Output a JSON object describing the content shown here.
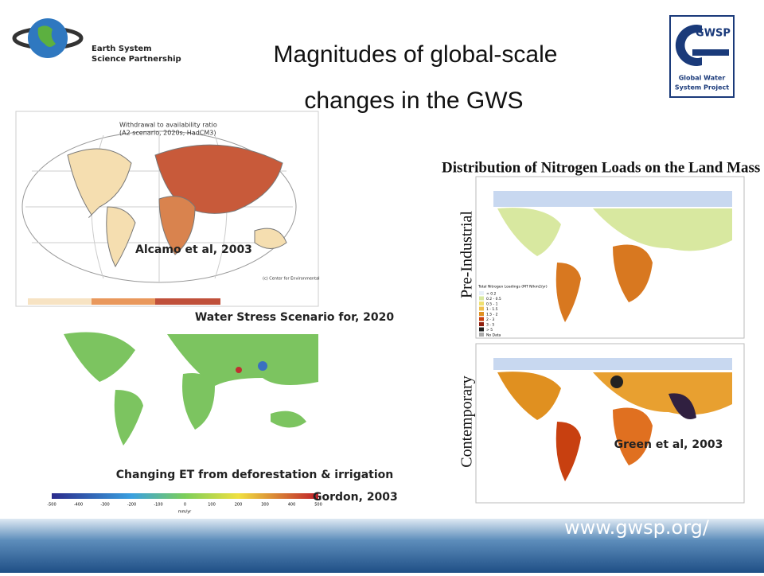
{
  "header": {
    "partner_logo": [
      "Earth System",
      "Science Partnership"
    ],
    "title": [
      "Magnitudes of global-scale",
      "changes in the GWS"
    ],
    "project_logo": {
      "acronym": "GWSP",
      "name": [
        "Global Water",
        "System Project"
      ]
    }
  },
  "water_stress": {
    "map_title": [
      "Withdrawal to availability ratio",
      "(A2 scenario, 2020s, HadCM3)"
    ],
    "source": "Alcamo et al, 2003",
    "copyright": "(c) Center for Environmental",
    "caption": "Water Stress Scenario for, 2020"
  },
  "evapotranspiration": {
    "caption": "Changing ET from deforestation & irrigation",
    "source": "Gordon, 2003",
    "colorbar_ticks": [
      "-500",
      "-400",
      "-300",
      "-200",
      "-100",
      "0",
      "100",
      "200",
      "300",
      "400",
      "500"
    ],
    "colorbar_unit": "mm/yr"
  },
  "nitrogen": {
    "title": "Distribution of Nitrogen Loads on the Land Mass",
    "panels": [
      "Pre-Industrial",
      "Contemporary"
    ],
    "legend_title": "Total Nitrogen Loadings (MT N/km2/yr)",
    "legend_items": [
      "< 0.2",
      "0.2 - 0.5",
      "0.5 - 1",
      "1 - 1.5",
      "1.5 - 2",
      "2 - 3",
      "3 - 5",
      "> 5",
      "No Data"
    ],
    "source": "Green et al, 2003"
  },
  "footer": {
    "url": "www.gwsp.org/"
  }
}
